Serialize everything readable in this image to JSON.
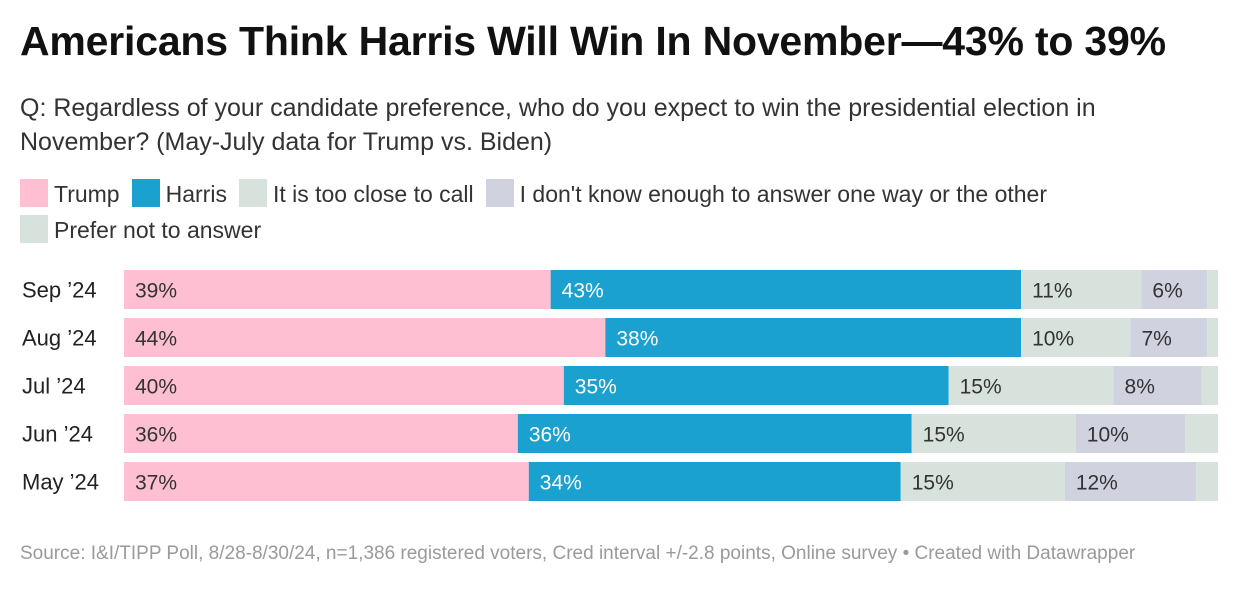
{
  "title": "Americans Think Harris Will Win In November—43% to 39%",
  "subtitle": "Q: Regardless of your candidate preference, who do you expect to win the presidential election in November? (May-July data for Trump vs. Biden)",
  "legend": [
    {
      "label": "Trump",
      "color": "#fdbfd1"
    },
    {
      "label": "Harris",
      "color": "#1aa1cf"
    },
    {
      "label": "It is too close to call",
      "color": "#d7e2dc"
    },
    {
      "label": "I don't know enough to answer one way or the other",
      "color": "#d0d2e0"
    },
    {
      "label": "Prefer not to answer",
      "color": "#d7e2dc"
    }
  ],
  "source": "Source: I&I/TIPP Poll, 8/28-8/30/24, n=1,386 registered voters, Cred interval +/-2.8 points, Online survey • Created with Datawrapper",
  "chart_data": {
    "type": "bar",
    "orientation": "horizontal",
    "stacked": true,
    "categories": [
      "Sep ’24",
      "Aug ’24",
      "Jul ’24",
      "Jun ’24",
      "May ’24"
    ],
    "series": [
      {
        "name": "Trump",
        "color": "#fdbfd1",
        "values": [
          39,
          44,
          40,
          36,
          37
        ],
        "labels": [
          "39%",
          "44%",
          "40%",
          "36%",
          "37%"
        ]
      },
      {
        "name": "Harris",
        "color": "#1aa1cf",
        "values": [
          43,
          38,
          35,
          36,
          34
        ],
        "labels": [
          "43%",
          "38%",
          "35%",
          "36%",
          "34%"
        ]
      },
      {
        "name": "It is too close to call",
        "color": "#d7e2dc",
        "values": [
          11,
          10,
          15,
          15,
          15
        ],
        "labels": [
          "11%",
          "10%",
          "15%",
          "15%",
          "15%"
        ]
      },
      {
        "name": "I don't know enough to answer one way or the other",
        "color": "#d0d2e0",
        "values": [
          6,
          7,
          8,
          10,
          12
        ],
        "labels": [
          "6%",
          "7%",
          "8%",
          "10%",
          "12%"
        ]
      },
      {
        "name": "Prefer not to answer",
        "color": "#d7e2dc",
        "values": [
          1,
          1,
          1.5,
          3,
          2
        ],
        "labels": [
          "",
          "",
          "",
          "",
          ""
        ]
      }
    ],
    "legend_position": "top",
    "grid": false
  }
}
